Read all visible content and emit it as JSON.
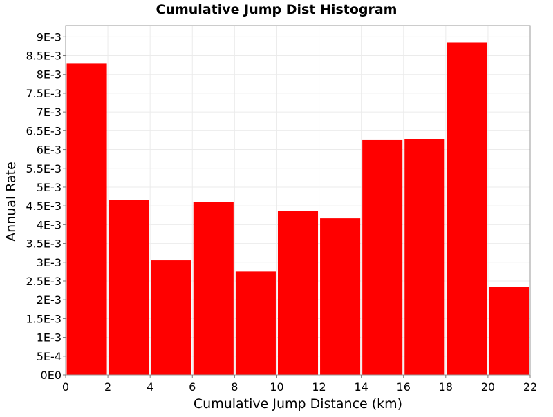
{
  "chart_data": {
    "type": "bar",
    "title": "Cumulative Jump Dist Histogram",
    "xlabel": "Cumulative Jump Distance (km)",
    "ylabel": "Annual Rate",
    "xlim": [
      0,
      22
    ],
    "ylim": [
      0,
      0.0093
    ],
    "x_ticks": [
      0,
      2,
      4,
      6,
      8,
      10,
      12,
      14,
      16,
      18,
      20,
      22
    ],
    "x_tick_labels": [
      "0",
      "2",
      "4",
      "6",
      "8",
      "10",
      "12",
      "14",
      "16",
      "18",
      "20",
      "22"
    ],
    "y_ticks": [
      0,
      0.0005,
      0.001,
      0.0015,
      0.002,
      0.0025,
      0.003,
      0.0035,
      0.004,
      0.0045,
      0.005,
      0.0055,
      0.006,
      0.0065,
      0.007,
      0.0075,
      0.008,
      0.0085,
      0.009
    ],
    "y_tick_labels": [
      "0E0",
      "5E-4",
      "1E-3",
      "1.5E-3",
      "2E-3",
      "2.5E-3",
      "3E-3",
      "3.5E-3",
      "4E-3",
      "4.5E-3",
      "5E-3",
      "5.5E-3",
      "6E-3",
      "6.5E-3",
      "7E-3",
      "7.5E-3",
      "8E-3",
      "8.5E-3",
      "9E-3"
    ],
    "bars": [
      {
        "x0": 0,
        "x1": 2,
        "value": 0.0083
      },
      {
        "x0": 2,
        "x1": 4,
        "value": 0.00465
      },
      {
        "x0": 4,
        "x1": 6,
        "value": 0.00305
      },
      {
        "x0": 6,
        "x1": 8,
        "value": 0.0046
      },
      {
        "x0": 8,
        "x1": 10,
        "value": 0.00275
      },
      {
        "x0": 10,
        "x1": 12,
        "value": 0.00437
      },
      {
        "x0": 12,
        "x1": 14,
        "value": 0.00417
      },
      {
        "x0": 14,
        "x1": 16,
        "value": 0.00625
      },
      {
        "x0": 16,
        "x1": 18,
        "value": 0.00628
      },
      {
        "x0": 18,
        "x1": 20,
        "value": 0.00885
      },
      {
        "x0": 20,
        "x1": 22,
        "value": 0.00235
      }
    ],
    "bar_color": "#ff0000",
    "grid": true,
    "grid_color": "#ebebeb",
    "legend": "none"
  }
}
